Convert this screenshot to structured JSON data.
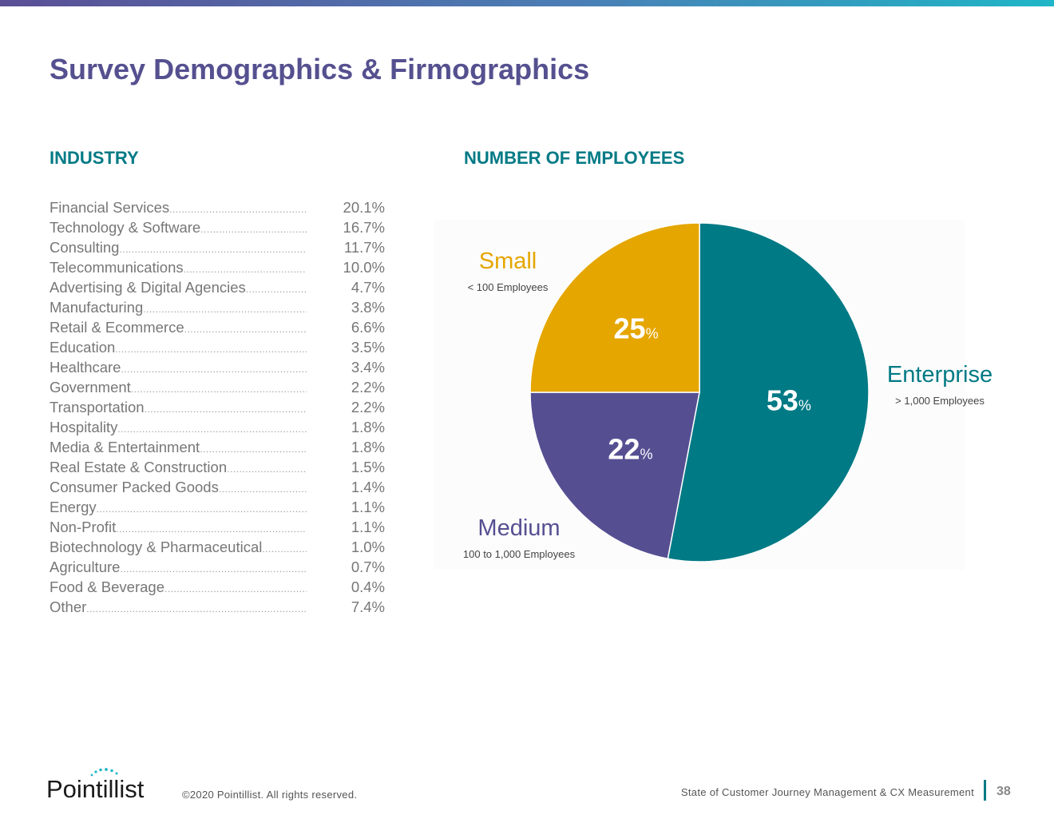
{
  "page": {
    "title": "Survey Demographics & Firmographics",
    "page_number": "38"
  },
  "industry": {
    "heading": "INDUSTRY",
    "rows": [
      {
        "name": "Financial Services",
        "value": "20.1%"
      },
      {
        "name": "Technology & Software",
        "value": "16.7%"
      },
      {
        "name": "Consulting",
        "value": "11.7%"
      },
      {
        "name": "Telecommunications",
        "value": "10.0%"
      },
      {
        "name": "Advertising & Digital Agencies",
        "value": "4.7%"
      },
      {
        "name": "Manufacturing",
        "value": "3.8%"
      },
      {
        "name": "Retail & Ecommerce",
        "value": "6.6%"
      },
      {
        "name": "Education",
        "value": "3.5%"
      },
      {
        "name": "Healthcare",
        "value": "3.4%"
      },
      {
        "name": "Government",
        "value": "2.2%"
      },
      {
        "name": "Transportation",
        "value": "2.2%"
      },
      {
        "name": "Hospitality",
        "value": "1.8%"
      },
      {
        "name": "Media & Entertainment",
        "value": "1.8%"
      },
      {
        "name": "Real Estate & Construction",
        "value": "1.5%"
      },
      {
        "name": "Consumer Packed Goods",
        "value": "1.4%"
      },
      {
        "name": "Energy",
        "value": "1.1%"
      },
      {
        "name": "Non-Profit",
        "value": "1.1%"
      },
      {
        "name": "Biotechnology & Pharmaceutical",
        "value": "1.0%"
      },
      {
        "name": "Agriculture",
        "value": "0.7%"
      },
      {
        "name": "Food & Beverage",
        "value": "0.4%"
      },
      {
        "name": "Other",
        "value": "7.4%"
      }
    ]
  },
  "chart_data": {
    "type": "pie",
    "title": "NUMBER OF EMPLOYEES",
    "start_angle_deg": 0,
    "percent_suffix": "%",
    "slices": [
      {
        "name": "Enterprise",
        "sub": "> 1,000 Employees",
        "value": 53,
        "color": "#007a85"
      },
      {
        "name": "Medium",
        "sub": "100 to 1,000 Employees",
        "value": 22,
        "color": "#554f92"
      },
      {
        "name": "Small",
        "sub": "< 100 Employees",
        "value": 25,
        "color": "#e5a600"
      }
    ]
  },
  "footer": {
    "logo_text": "Pointillist",
    "copyright": "©2020 Pointillist. All rights reserved.",
    "report_title": "State of Customer Journey Management & CX Measurement"
  },
  "colors": {
    "title": "#55508f",
    "heading": "#007a85",
    "enterprise": "#007a85",
    "medium": "#554f92",
    "small": "#e5a600"
  }
}
